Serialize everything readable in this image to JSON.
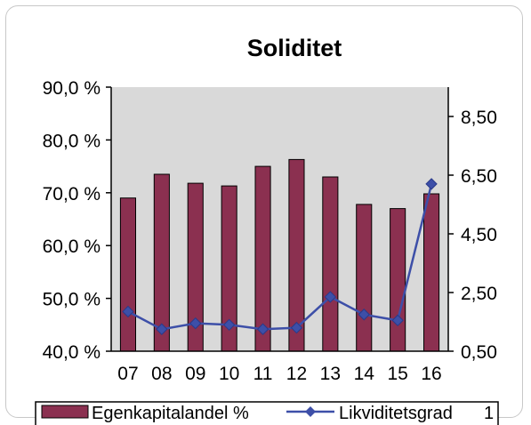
{
  "chart_data": {
    "type": "bar",
    "title": "Soliditet",
    "categories": [
      "07",
      "08",
      "09",
      "10",
      "11",
      "12",
      "13",
      "14",
      "15",
      "16"
    ],
    "series": [
      {
        "name": "Egenkapitalandel %",
        "type": "bar",
        "axis": "left",
        "color": "#8b3050",
        "values": [
          69.0,
          73.5,
          71.8,
          71.3,
          75.0,
          76.3,
          73.0,
          67.8,
          67.0,
          69.8
        ]
      },
      {
        "name": "Likviditetsgrad",
        "type": "line",
        "axis": "right",
        "color": "#3d4fa8",
        "values": [
          1.85,
          1.25,
          1.45,
          1.4,
          1.25,
          1.3,
          2.35,
          1.75,
          1.55,
          6.2
        ]
      }
    ],
    "y_left": {
      "min": 40,
      "max": 90,
      "ticks": [
        40,
        50,
        60,
        70,
        80,
        90
      ],
      "tick_labels": [
        "40,0 %",
        "50,0 %",
        "60,0 %",
        "70,0 %",
        "80,0 %",
        "90,0 %"
      ]
    },
    "y_right": {
      "min": 0.5,
      "max": 9.5,
      "ticks": [
        0.5,
        2.5,
        4.5,
        6.5,
        8.5
      ],
      "tick_labels": [
        "0,50",
        "2,50",
        "4,50",
        "6,50",
        "8,50"
      ]
    },
    "legend": {
      "position": "bottom",
      "items": [
        "Egenkapitalandel %",
        "Likviditetsgrad"
      ],
      "trailing_text": "1"
    },
    "plot_background": "#d9d9d9",
    "grid": false
  }
}
